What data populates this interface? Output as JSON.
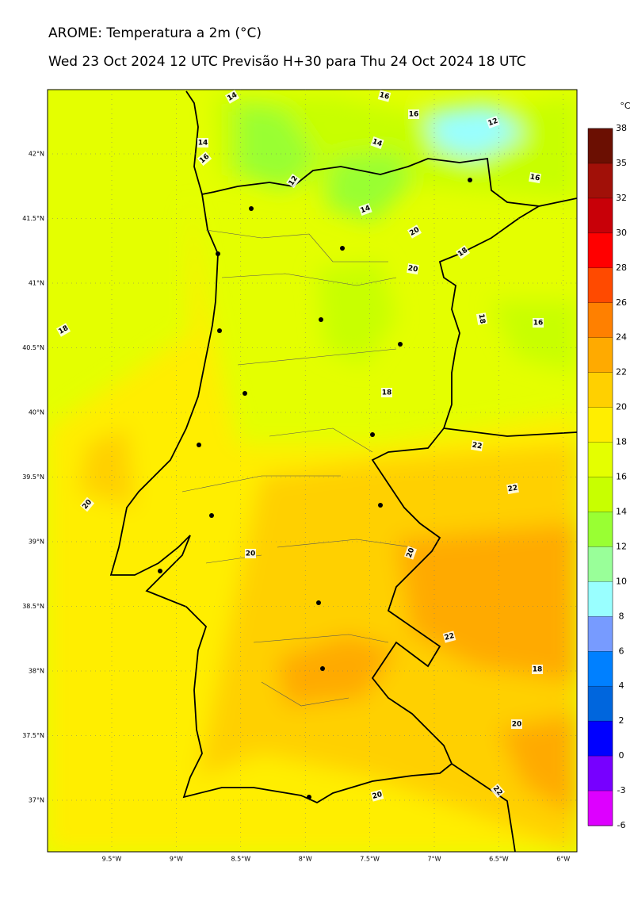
{
  "header": {
    "title": "AROME: Temperatura a 2m (°C)",
    "subtitle": "Wed 23 Oct 2024 12 UTC Previsão H+30 para Thu 24 Oct 2024 18 UTC"
  },
  "map": {
    "lat_labels": [
      "42°N",
      "41.5°N",
      "41°N",
      "40.5°N",
      "40°N",
      "39.5°N",
      "39°N",
      "38.5°N",
      "38°N",
      "37.5°N",
      "37°N"
    ],
    "lon_labels": [
      "9.5°W",
      "9°W",
      "8.5°W",
      "8°W",
      "7.5°W",
      "7°W",
      "6.5°W",
      "6°W"
    ],
    "contour_labels": [
      "14",
      "16",
      "16",
      "12",
      "14",
      "14",
      "16",
      "12",
      "16",
      "14",
      "20",
      "18",
      "20",
      "18",
      "18",
      "16",
      "18",
      "22",
      "22",
      "20",
      "20",
      "20",
      "22",
      "18",
      "20",
      "22",
      "20"
    ]
  },
  "colorbar": {
    "unit": "°C",
    "levels": [
      38,
      35,
      32,
      30,
      28,
      26,
      24,
      22,
      20,
      18,
      16,
      14,
      12,
      10,
      8,
      6,
      4,
      2,
      0,
      -3,
      -6
    ],
    "colors": [
      "#6b0f02",
      "#a11008",
      "#c80008",
      "#ff0000",
      "#ff4a00",
      "#ff8000",
      "#ffaa00",
      "#ffd000",
      "#ffee00",
      "#e4ff00",
      "#c8ff00",
      "#99ff33",
      "#99ff99",
      "#99ffff",
      "#779bff",
      "#0080ff",
      "#0066dd",
      "#0000ff",
      "#7700ff",
      "#dd00ff"
    ]
  }
}
